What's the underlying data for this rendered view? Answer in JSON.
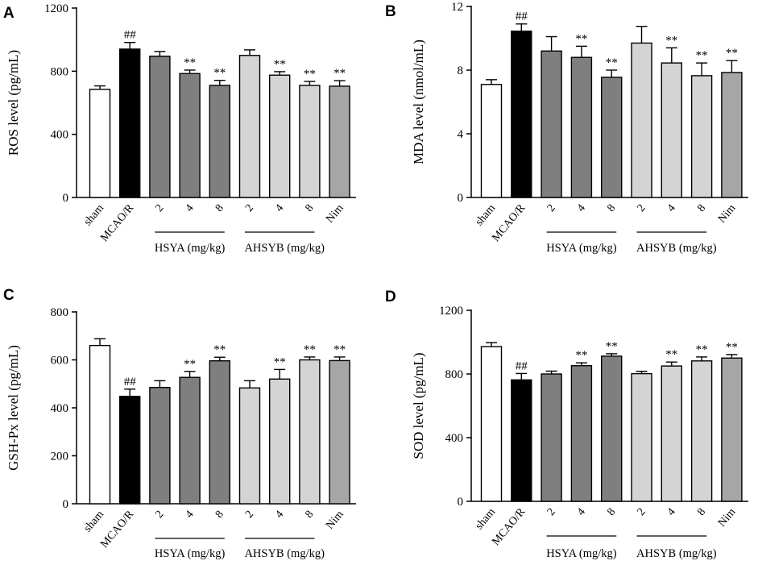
{
  "figure": {
    "categories": [
      "sham",
      "MCAO/R",
      "2",
      "4",
      "8",
      "2",
      "4",
      "8",
      "Nim"
    ],
    "group_labels": [
      "HSYA (mg/kg)",
      "AHSYB (mg/kg)"
    ],
    "colors": {
      "sham": "#ffffff",
      "model": "#000000",
      "hsya": "#7f7f7f",
      "ahsyb": "#d4d4d4",
      "nim": "#a6a6a6",
      "stroke": "#000000"
    }
  },
  "chart_data": [
    {
      "type": "bar",
      "panel": "A",
      "ylabel": "ROS level (pg/mL)",
      "ylim": [
        0,
        1200
      ],
      "yticks": [
        0,
        400,
        800,
        1200
      ],
      "values": [
        685,
        940,
        895,
        785,
        710,
        900,
        775,
        710,
        705
      ],
      "errors": [
        22,
        42,
        30,
        22,
        32,
        35,
        22,
        25,
        35
      ],
      "annotations": [
        "",
        "##",
        "",
        "**",
        "**",
        "",
        "**",
        "**",
        "**"
      ]
    },
    {
      "type": "bar",
      "panel": "B",
      "ylabel": "MDA level (nmol/mL)",
      "ylim": [
        0,
        12
      ],
      "yticks": [
        0,
        4,
        8,
        12
      ],
      "values": [
        7.1,
        10.45,
        9.2,
        8.8,
        7.55,
        9.7,
        8.45,
        7.65,
        7.85
      ],
      "errors": [
        0.3,
        0.45,
        0.9,
        0.7,
        0.45,
        1.05,
        0.95,
        0.8,
        0.75
      ],
      "annotations": [
        "",
        "##",
        "",
        "**",
        "**",
        "",
        "**",
        "**",
        "**"
      ]
    },
    {
      "type": "bar",
      "panel": "C",
      "ylabel": "GSH-Px level (pg/mL)",
      "ylim": [
        0,
        800
      ],
      "yticks": [
        0,
        200,
        400,
        600,
        800
      ],
      "values": [
        660,
        448,
        485,
        527,
        596,
        483,
        520,
        600,
        597
      ],
      "errors": [
        28,
        30,
        28,
        25,
        15,
        30,
        40,
        12,
        15
      ],
      "annotations": [
        "",
        "##",
        "",
        "**",
        "**",
        "",
        "**",
        "**",
        "**"
      ]
    },
    {
      "type": "bar",
      "panel": "D",
      "ylabel": "SOD level (pg/mL)",
      "ylim": [
        0,
        1200
      ],
      "yticks": [
        0,
        400,
        800,
        1200
      ],
      "values": [
        972,
        763,
        800,
        852,
        912,
        802,
        850,
        882,
        900
      ],
      "errors": [
        25,
        40,
        18,
        18,
        15,
        15,
        25,
        25,
        22
      ],
      "annotations": [
        "",
        "##",
        "",
        "**",
        "**",
        "",
        "**",
        "**",
        "**"
      ]
    }
  ]
}
